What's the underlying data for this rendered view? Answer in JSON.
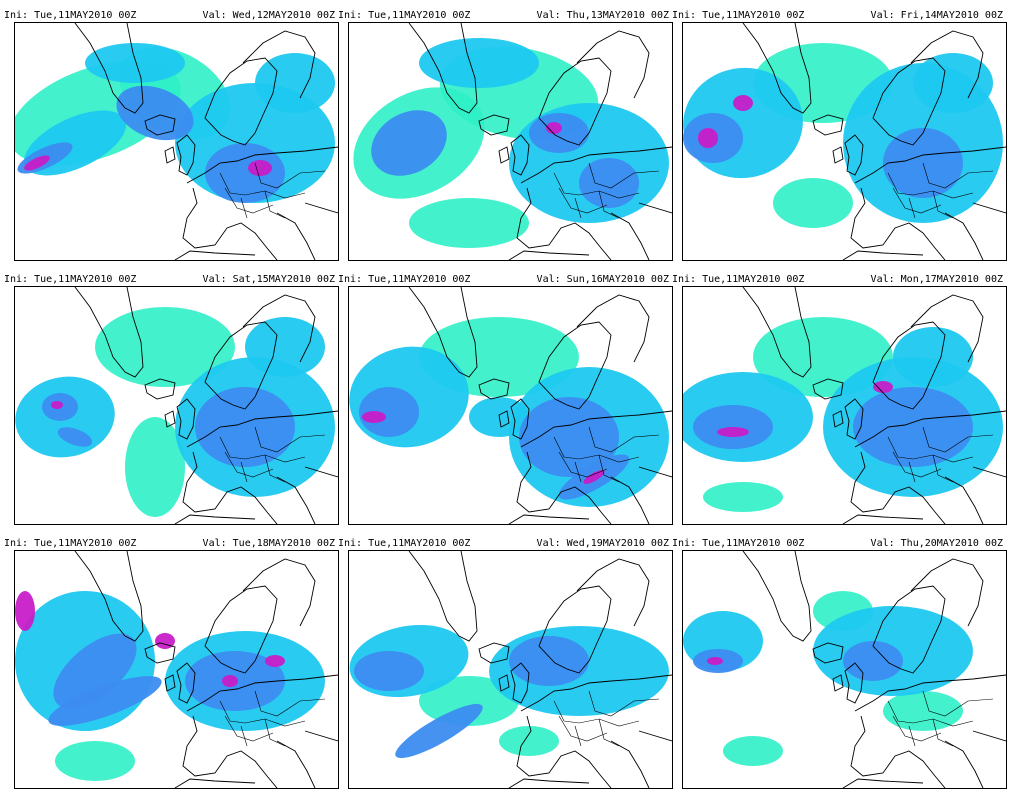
{
  "panels": [
    {
      "ini": "Ini: Tue,11MAY2010 00Z",
      "val": "Val: Wed,12MAY2010 00Z"
    },
    {
      "ini": "Ini: Tue,11MAY2010 00Z",
      "val": "Val: Thu,13MAY2010 00Z"
    },
    {
      "ini": "Ini: Tue,11MAY2010 00Z",
      "val": "Val: Fri,14MAY2010 00Z"
    },
    {
      "ini": "Ini: Tue,11MAY2010 00Z",
      "val": "Val: Sat,15MAY2010 00Z"
    },
    {
      "ini": "Ini: Tue,11MAY2010 00Z",
      "val": "Val: Sun,16MAY2010 00Z"
    },
    {
      "ini": "Ini: Tue,11MAY2010 00Z",
      "val": "Val: Mon,17MAY2010 00Z"
    },
    {
      "ini": "Ini: Tue,11MAY2010 00Z",
      "val": "Val: Tue,18MAY2010 00Z"
    },
    {
      "ini": "Ini: Tue,11MAY2010 00Z",
      "val": "Val: Wed,19MAY2010 00Z"
    },
    {
      "ini": "Ini: Tue,11MAY2010 00Z",
      "val": "Val: Thu,20MAY2010 00Z"
    }
  ],
  "colors": {
    "light": "#2ff0c8",
    "cyan": "#1ec8f0",
    "mid": "#3c8cf0",
    "dark": "#2850e6",
    "peak": "#c81ec8",
    "coast": "#000000",
    "background": "#ffffff"
  }
}
